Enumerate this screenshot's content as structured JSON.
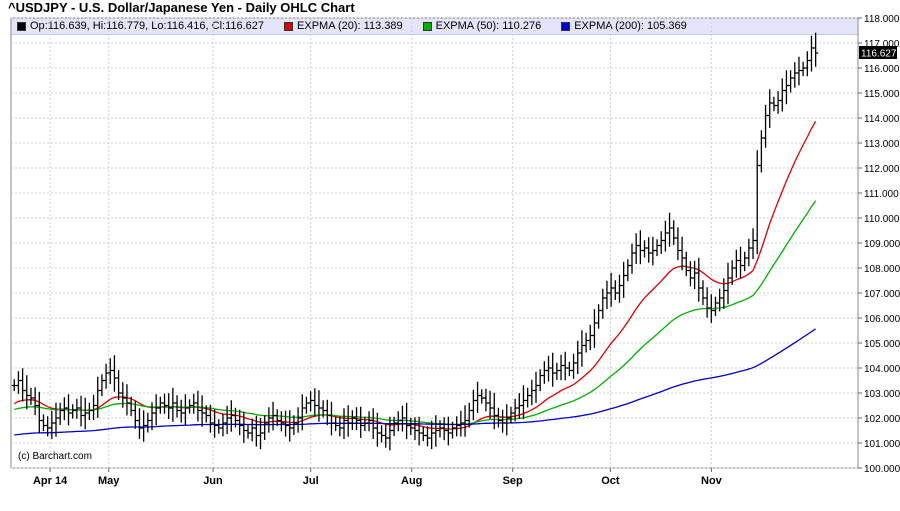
{
  "header": {
    "title": "^USDJPY - U.S. Dollar/Japanese Yen - Daily OHLC Chart"
  },
  "legend": {
    "items": [
      {
        "label": "Op:116.639, Hi:116.779, Lo:116.416, Cl:116.627",
        "color": "#000000"
      },
      {
        "label": "EXPMA (20): 113.389",
        "color": "#e00000"
      },
      {
        "label": "EXPMA (50): 110.276",
        "color": "#00b000"
      },
      {
        "label": "EXPMA (200): 105.369",
        "color": "#0000cc"
      }
    ]
  },
  "footer": {
    "copyright": "(c) Barchart.com"
  },
  "chart_data": {
    "type": "ohlc",
    "y_axis": {
      "min": 100.0,
      "max": 118.0,
      "side": "right",
      "ticks": [
        "118.000",
        "117.000",
        "116.000",
        "115.000",
        "114.000",
        "113.000",
        "112.000",
        "111.000",
        "110.000",
        "109.000",
        "108.000",
        "107.000",
        "106.000",
        "105.000",
        "104.000",
        "103.000",
        "102.000",
        "101.000",
        "100.000"
      ]
    },
    "x_axis": {
      "labels": [
        "Apr 14",
        "May",
        "Jun",
        "Jul",
        "Aug",
        "Sep",
        "Oct",
        "Nov"
      ],
      "label_days": [
        12,
        30,
        62,
        92,
        123,
        154,
        184,
        215
      ],
      "start_day": 0,
      "end_day": 260
    },
    "last_price_label": "116.627",
    "closes": [
      103.3,
      103.5,
      103.1,
      102.9,
      102.8,
      102.5,
      101.9,
      101.7,
      101.6,
      101.8,
      102.0,
      102.3,
      102.4,
      102.2,
      102.3,
      102.4,
      102.1,
      102.2,
      102.3,
      102.5,
      103.1,
      103.5,
      103.8,
      103.9,
      103.6,
      103.0,
      102.8,
      102.6,
      102.3,
      101.9,
      101.6,
      101.7,
      101.9,
      102.2,
      102.4,
      102.6,
      102.5,
      102.4,
      102.6,
      102.3,
      102.2,
      102.4,
      102.5,
      102.6,
      102.3,
      102.2,
      102.1,
      101.8,
      101.7,
      101.6,
      101.8,
      102.0,
      102.1,
      101.9,
      101.7,
      101.5,
      101.4,
      101.6,
      101.3,
      101.4,
      101.8,
      102.0,
      102.1,
      101.9,
      101.8,
      101.7,
      101.6,
      101.8,
      102.0,
      102.4,
      102.6,
      102.7,
      102.5,
      102.4,
      102.3,
      102.1,
      101.8,
      101.7,
      101.6,
      101.9,
      101.8,
      102.0,
      101.9,
      101.7,
      101.8,
      101.9,
      101.6,
      101.4,
      101.3,
      101.2,
      101.5,
      101.8,
      101.9,
      102.0,
      101.7,
      101.6,
      101.5,
      101.4,
      101.3,
      101.2,
      101.4,
      101.5,
      101.6,
      101.5,
      101.4,
      101.6,
      101.7,
      101.8,
      101.9,
      102.3,
      102.7,
      102.9,
      102.8,
      102.6,
      102.4,
      102.1,
      101.9,
      101.8,
      102.0,
      102.2,
      102.4,
      102.5,
      102.7,
      102.9,
      103.1,
      103.3,
      103.7,
      103.9,
      104.0,
      103.8,
      103.9,
      104.1,
      104.0,
      103.9,
      104.2,
      104.6,
      104.9,
      105.1,
      105.3,
      105.8,
      106.3,
      106.8,
      107.0,
      107.2,
      107.0,
      107.3,
      107.7,
      108.1,
      108.6,
      108.9,
      108.7,
      108.8,
      108.6,
      108.7,
      108.9,
      109.1,
      109.4,
      109.6,
      109.2,
      108.7,
      108.4,
      107.9,
      107.6,
      107.8,
      107.2,
      106.8,
      106.4,
      106.3,
      106.6,
      106.8,
      107.1,
      107.6,
      108.0,
      108.3,
      108.1,
      108.4,
      108.8,
      109.1,
      112.1,
      113.2,
      114.1,
      114.6,
      114.5,
      114.7,
      115.1,
      115.3,
      115.6,
      115.8,
      115.9,
      116.0,
      116.3,
      116.8,
      116.6
    ]
  }
}
